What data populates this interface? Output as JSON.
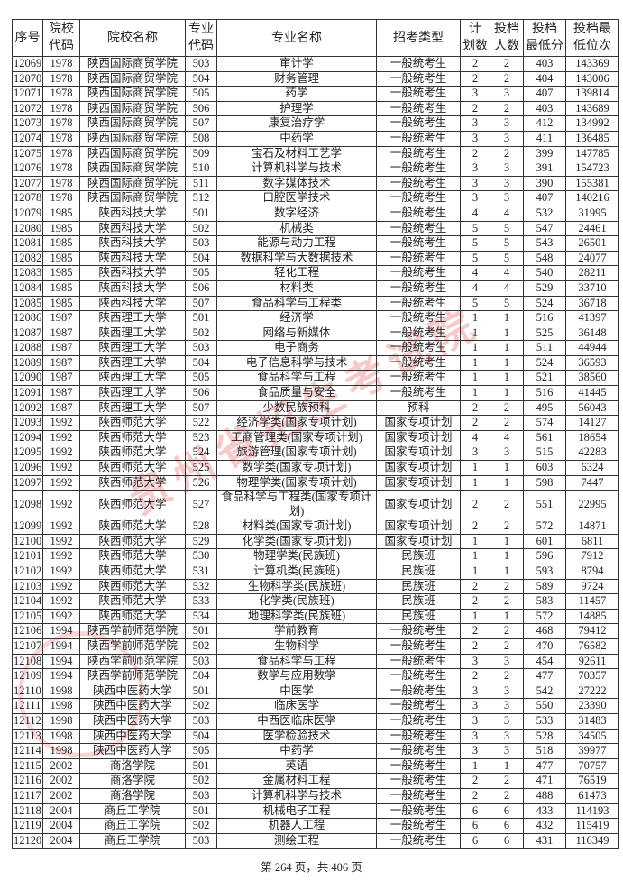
{
  "table": {
    "headers": [
      "序号",
      "院校\n代码",
      "院校名称",
      "专业\n代码",
      "专业名称",
      "招考类型",
      "计\n划数",
      "投档\n人数",
      "投档\n最低分",
      "投档最\n低位次"
    ],
    "rows": [
      [
        "12069",
        "1978",
        "陕西国际商贸学院",
        "503",
        "审计学",
        "一般统考生",
        "2",
        "2",
        "403",
        "143369"
      ],
      [
        "12070",
        "1978",
        "陕西国际商贸学院",
        "504",
        "财务管理",
        "一般统考生",
        "2",
        "2",
        "404",
        "143006"
      ],
      [
        "12071",
        "1978",
        "陕西国际商贸学院",
        "505",
        "药学",
        "一般统考生",
        "3",
        "3",
        "407",
        "139814"
      ],
      [
        "12072",
        "1978",
        "陕西国际商贸学院",
        "506",
        "护理学",
        "一般统考生",
        "2",
        "2",
        "403",
        "143689"
      ],
      [
        "12073",
        "1978",
        "陕西国际商贸学院",
        "507",
        "康复治疗学",
        "一般统考生",
        "3",
        "3",
        "412",
        "134992"
      ],
      [
        "12074",
        "1978",
        "陕西国际商贸学院",
        "508",
        "中药学",
        "一般统考生",
        "3",
        "3",
        "411",
        "136485"
      ],
      [
        "12075",
        "1978",
        "陕西国际商贸学院",
        "509",
        "宝石及材料工艺学",
        "一般统考生",
        "2",
        "2",
        "399",
        "147785"
      ],
      [
        "12076",
        "1978",
        "陕西国际商贸学院",
        "510",
        "计算机科学与技术",
        "一般统考生",
        "3",
        "3",
        "391",
        "154723"
      ],
      [
        "12077",
        "1978",
        "陕西国际商贸学院",
        "511",
        "数字媒体技术",
        "一般统考生",
        "3",
        "3",
        "390",
        "155381"
      ],
      [
        "12078",
        "1978",
        "陕西国际商贸学院",
        "512",
        "口腔医学技术",
        "一般统考生",
        "3",
        "3",
        "407",
        "140216"
      ],
      [
        "12079",
        "1985",
        "陕西科技大学",
        "501",
        "数字经济",
        "一般统考生",
        "4",
        "4",
        "532",
        "31995"
      ],
      [
        "12080",
        "1985",
        "陕西科技大学",
        "502",
        "机械类",
        "一般统考生",
        "5",
        "5",
        "547",
        "24461"
      ],
      [
        "12081",
        "1985",
        "陕西科技大学",
        "503",
        "能源与动力工程",
        "一般统考生",
        "5",
        "5",
        "543",
        "26501"
      ],
      [
        "12082",
        "1985",
        "陕西科技大学",
        "504",
        "数据科学与大数据技术",
        "一般统考生",
        "5",
        "5",
        "548",
        "24077"
      ],
      [
        "12083",
        "1985",
        "陕西科技大学",
        "505",
        "轻化工程",
        "一般统考生",
        "4",
        "4",
        "540",
        "28211"
      ],
      [
        "12084",
        "1985",
        "陕西科技大学",
        "506",
        "材料类",
        "一般统考生",
        "4",
        "4",
        "529",
        "33710"
      ],
      [
        "12085",
        "1985",
        "陕西科技大学",
        "507",
        "食品科学与工程类",
        "一般统考生",
        "5",
        "5",
        "524",
        "36718"
      ],
      [
        "12086",
        "1987",
        "陕西理工大学",
        "501",
        "经济学",
        "一般统考生",
        "1",
        "1",
        "516",
        "41397"
      ],
      [
        "12087",
        "1987",
        "陕西理工大学",
        "502",
        "网络与新媒体",
        "一般统考生",
        "1",
        "1",
        "525",
        "36148"
      ],
      [
        "12088",
        "1987",
        "陕西理工大学",
        "503",
        "电子商务",
        "一般统考生",
        "1",
        "1",
        "511",
        "44944"
      ],
      [
        "12089",
        "1987",
        "陕西理工大学",
        "504",
        "电子信息科学与技术",
        "一般统考生",
        "1",
        "1",
        "524",
        "36593"
      ],
      [
        "12090",
        "1987",
        "陕西理工大学",
        "505",
        "食品科学与工程",
        "一般统考生",
        "1",
        "1",
        "521",
        "38560"
      ],
      [
        "12091",
        "1987",
        "陕西理工大学",
        "506",
        "食品质量与安全",
        "一般统考生",
        "1",
        "1",
        "516",
        "41445"
      ],
      [
        "12092",
        "1987",
        "陕西理工大学",
        "507",
        "少数民族预科",
        "预科",
        "2",
        "2",
        "495",
        "56043"
      ],
      [
        "12093",
        "1992",
        "陕西师范大学",
        "522",
        "经济学类(国家专项计划)",
        "国家专项计划",
        "2",
        "2",
        "574",
        "14127"
      ],
      [
        "12094",
        "1992",
        "陕西师范大学",
        "523",
        "工商管理类(国家专项计划)",
        "国家专项计划",
        "4",
        "4",
        "561",
        "18654"
      ],
      [
        "12095",
        "1992",
        "陕西师范大学",
        "524",
        "旅游管理(国家专项计划)",
        "国家专项计划",
        "3",
        "3",
        "515",
        "42283"
      ],
      [
        "12096",
        "1992",
        "陕西师范大学",
        "525",
        "数学类(国家专项计划)",
        "国家专项计划",
        "1",
        "1",
        "603",
        "6324"
      ],
      [
        "12097",
        "1992",
        "陕西师范大学",
        "526",
        "物理学类(国家专项计划)",
        "国家专项计划",
        "1",
        "1",
        "598",
        "7447"
      ],
      [
        "12098",
        "1992",
        "陕西师范大学",
        "527",
        "食品科学与工程类(国家专项计划)",
        "国家专项计划",
        "2",
        "2",
        "551",
        "22995"
      ],
      [
        "12099",
        "1992",
        "陕西师范大学",
        "528",
        "材料类(国家专项计划)",
        "国家专项计划",
        "2",
        "2",
        "572",
        "14871"
      ],
      [
        "12100",
        "1992",
        "陕西师范大学",
        "529",
        "化学类(国家专项计划)",
        "国家专项计划",
        "1",
        "1",
        "601",
        "6811"
      ],
      [
        "12101",
        "1992",
        "陕西师范大学",
        "530",
        "物理学类(民族班)",
        "民族班",
        "1",
        "1",
        "596",
        "7912"
      ],
      [
        "12102",
        "1992",
        "陕西师范大学",
        "531",
        "计算机类(民族班)",
        "民族班",
        "1",
        "1",
        "593",
        "8794"
      ],
      [
        "12103",
        "1992",
        "陕西师范大学",
        "532",
        "生物科学类(民族班)",
        "民族班",
        "2",
        "2",
        "589",
        "9724"
      ],
      [
        "12104",
        "1992",
        "陕西师范大学",
        "533",
        "化学类(民族班)",
        "民族班",
        "2",
        "2",
        "583",
        "11457"
      ],
      [
        "12105",
        "1992",
        "陕西师范大学",
        "534",
        "地理科学类(民族班)",
        "民族班",
        "1",
        "1",
        "572",
        "14885"
      ],
      [
        "12106",
        "1994",
        "陕西学前师范学院",
        "501",
        "学前教育",
        "一般统考生",
        "2",
        "2",
        "468",
        "79412"
      ],
      [
        "12107",
        "1994",
        "陕西学前师范学院",
        "502",
        "生物科学",
        "一般统考生",
        "2",
        "2",
        "470",
        "76582"
      ],
      [
        "12108",
        "1994",
        "陕西学前师范学院",
        "503",
        "食品科学与工程",
        "一般统考生",
        "3",
        "3",
        "454",
        "92611"
      ],
      [
        "12109",
        "1994",
        "陕西学前师范学院",
        "504",
        "数学与应用数学",
        "一般统考生",
        "2",
        "2",
        "477",
        "70357"
      ],
      [
        "12110",
        "1998",
        "陕西中医药大学",
        "501",
        "中医学",
        "一般统考生",
        "3",
        "3",
        "542",
        "27222"
      ],
      [
        "12111",
        "1998",
        "陕西中医药大学",
        "502",
        "临床医学",
        "一般统考生",
        "3",
        "3",
        "550",
        "23390"
      ],
      [
        "12112",
        "1998",
        "陕西中医药大学",
        "503",
        "中西医临床医学",
        "一般统考生",
        "3",
        "3",
        "533",
        "31483"
      ],
      [
        "12113",
        "1998",
        "陕西中医药大学",
        "504",
        "医学检验技术",
        "一般统考生",
        "3",
        "3",
        "528",
        "34505"
      ],
      [
        "12114",
        "1998",
        "陕西中医药大学",
        "505",
        "中药学",
        "一般统考生",
        "3",
        "3",
        "518",
        "39977"
      ],
      [
        "12115",
        "2002",
        "商洛学院",
        "501",
        "英语",
        "一般统考生",
        "1",
        "1",
        "477",
        "70757"
      ],
      [
        "12116",
        "2002",
        "商洛学院",
        "502",
        "金属材料工程",
        "一般统考生",
        "2",
        "2",
        "471",
        "76519"
      ],
      [
        "12117",
        "2002",
        "商洛学院",
        "503",
        "计算机科学与技术",
        "一般统考生",
        "2",
        "2",
        "488",
        "61473"
      ],
      [
        "12118",
        "2004",
        "商丘工学院",
        "501",
        "机械电子工程",
        "一般统考生",
        "6",
        "6",
        "433",
        "114193"
      ],
      [
        "12119",
        "2004",
        "商丘工学院",
        "502",
        "机器人工程",
        "一般统考生",
        "6",
        "6",
        "432",
        "115419"
      ],
      [
        "12120",
        "2004",
        "商丘工学院",
        "503",
        "测绘工程",
        "一般统考生",
        "6",
        "6",
        "431",
        "116349"
      ]
    ]
  },
  "footer": "第 264 页，共 406 页",
  "watermark": "贵州省招生考试院",
  "colors": {
    "watermark": "#e63c3c",
    "border": "#333333"
  }
}
